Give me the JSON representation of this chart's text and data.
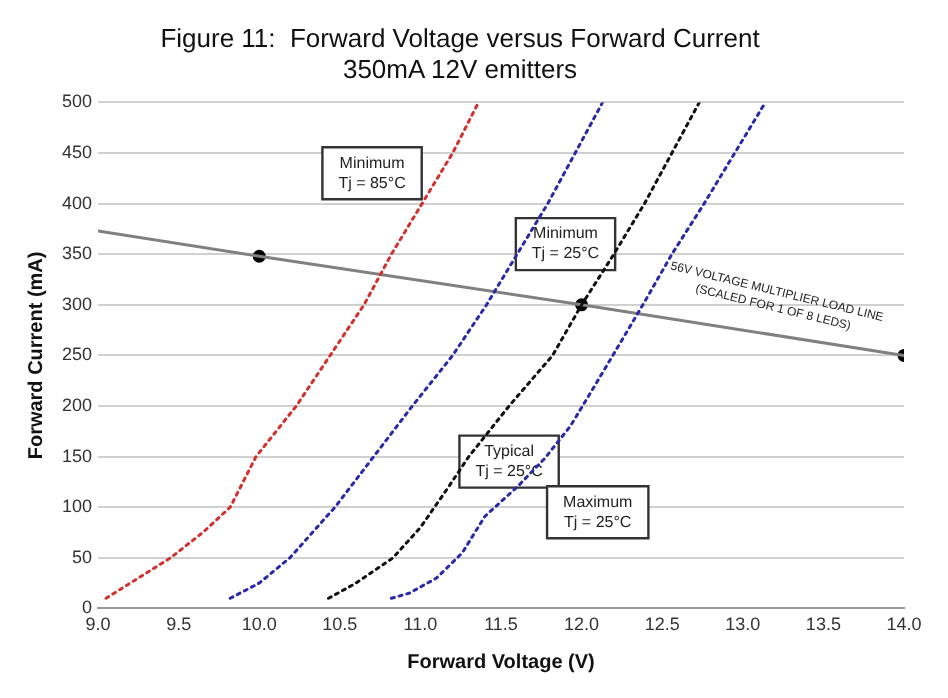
{
  "chart_data": {
    "type": "line",
    "title": "Figure 11:  Forward Voltage versus Forward Current",
    "subtitle": "350mA 12V emitters",
    "xlabel": "Forward Voltage (V)",
    "ylabel": "Forward Current (mA)",
    "xlim": [
      9,
      14
    ],
    "xticks": [
      {
        "value": 9,
        "label": "9.0"
      },
      9.5,
      {
        "value": 10,
        "label": "10.0"
      },
      10.5,
      {
        "value": 11,
        "label": "11.0"
      },
      11.5,
      {
        "value": 12,
        "label": "12.0"
      },
      12.5,
      {
        "value": 13,
        "label": "13.0"
      },
      13.5,
      {
        "value": 14,
        "label": "14.0"
      }
    ],
    "ylim": [
      0,
      500
    ],
    "yticks": [
      0,
      50,
      100,
      150,
      200,
      250,
      300,
      350,
      400,
      450,
      500
    ],
    "grid": "y",
    "legend": false,
    "marker": "none",
    "series": [
      {
        "color": "#d0312d",
        "line_style": "dotted",
        "x": [
          9.05,
          9.2,
          9.45,
          9.65,
          9.82,
          9.98,
          10.23,
          10.44,
          10.65,
          10.82,
          11.01,
          11.2,
          11.36
        ],
        "values": [
          10,
          25,
          50,
          75,
          100,
          150,
          200,
          250,
          300,
          350,
          400,
          450,
          500
        ]
      },
      {
        "color": "#2a2aa8",
        "line_style": "dotted",
        "x": [
          9.82,
          10.0,
          10.19,
          10.47,
          10.71,
          10.95,
          11.2,
          11.41,
          11.6,
          11.79,
          11.96,
          12.13
        ],
        "values": [
          10,
          25,
          50,
          100,
          150,
          200,
          250,
          300,
          350,
          400,
          450,
          500
        ]
      },
      {
        "color": "#111111",
        "line_style": "dotted",
        "x": [
          10.43,
          10.6,
          10.83,
          11.0,
          11.17,
          11.3,
          11.55,
          11.82,
          12.0,
          12.2,
          12.39,
          12.56,
          12.73
        ],
        "values": [
          10,
          25,
          50,
          80,
          119,
          150,
          200,
          250,
          300,
          350,
          400,
          450,
          500
        ]
      },
      {
        "color": "#2a2aa8",
        "line_style": "dotted",
        "x": [
          10.82,
          10.93,
          11.1,
          11.26,
          11.4,
          11.6,
          11.77,
          11.93,
          12.07,
          12.19,
          12.38,
          12.56,
          12.76,
          12.95,
          13.14
        ],
        "values": [
          10,
          15,
          30,
          55,
          91,
          120,
          148,
          180,
          217,
          249,
          300,
          350,
          400,
          450,
          500
        ]
      },
      {
        "color": "#808080",
        "line_style": "solid",
        "x": [
          9,
          10,
          12,
          14
        ],
        "values": [
          373,
          348,
          300,
          250
        ]
      },
      {
        "type": "scatter",
        "marker": "circle",
        "color": "#000000",
        "x": [
          10,
          12,
          14
        ],
        "values": [
          348,
          300,
          250
        ]
      }
    ],
    "annotations": [
      "Minimum\nTj = 85°C",
      "Minimum\nTj = 25°C",
      "Typical\nTj = 25°C",
      "Maximum\nTj = 25°C",
      "56V VOLTAGE MULTIPLIER LOAD LINE\n(SCALED FOR 1 OF 8 LEDS)"
    ]
  }
}
